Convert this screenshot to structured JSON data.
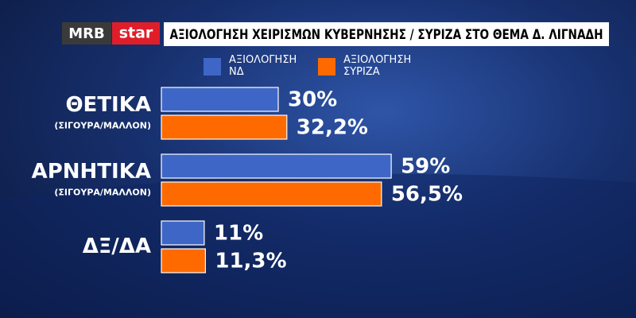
{
  "brand": {
    "left": "MRB",
    "right": "star"
  },
  "chart_data": {
    "type": "hbar",
    "title": "ΑΞΙΟΛΟΓΗΣΗ  ΧΕΙΡΙΣΜΩΝ ΚΥΒΕΡΝΗΣΗΣ / ΣΥΡΙΖΑ ΣΤΟ ΘΕΜΑ Δ. ΛΙΓΝΑΔΗ",
    "categories": [
      "ΘΕΤΙΚΑ",
      "ΑΡΝΗΤΙΚΑ",
      "ΔΞ/ΔΑ"
    ],
    "category_subtitles": [
      "(ΣΙΓΟΥΡΑ/ΜΑΛΛΟΝ)",
      "(ΣΙΓΟΥΡΑ/ΜΑΛΛΟΝ)",
      null
    ],
    "series": [
      {
        "name": "ΑΞΙΟΛΟΓΗΣΗ ΝΔ",
        "color": "#3e66c6",
        "values": [
          30,
          59,
          11
        ],
        "value_labels": [
          "30%",
          "59%",
          "11%"
        ]
      },
      {
        "name": "ΑΞΙΟΛΟΓΗΣΗ ΣΥΡΙΖΑ",
        "color": "#ff6a00",
        "values": [
          32.2,
          56.5,
          11.3
        ],
        "value_labels": [
          "32,2%",
          "56,5%",
          "11,3%"
        ]
      }
    ]
  }
}
